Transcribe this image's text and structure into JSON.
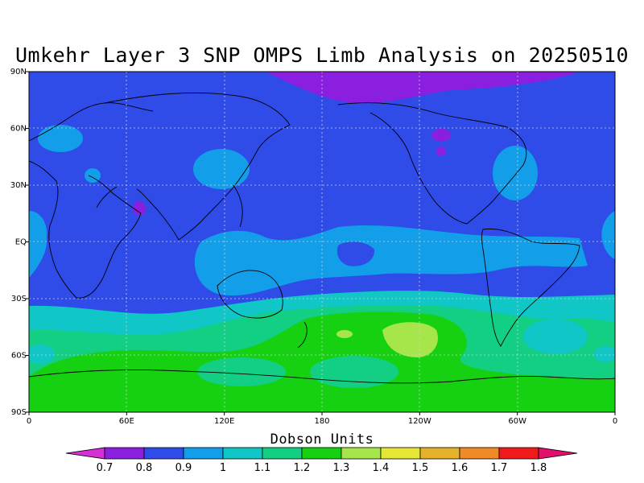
{
  "title": "Umkehr Layer 3 SNP OMPS Limb Analysis on 20250510",
  "chart_data": {
    "type": "heatmap",
    "map_projection": "cylindrical equidistant",
    "xaxis": {
      "ticks": [
        "0",
        "60E",
        "120E",
        "180",
        "120W",
        "60W",
        "0"
      ],
      "range": [
        0,
        360
      ]
    },
    "yaxis": {
      "ticks": [
        "90N",
        "60N",
        "30N",
        "EQ",
        "30S",
        "60S",
        "90S"
      ],
      "range": [
        90,
        -90
      ]
    },
    "grid": true,
    "colorbar": {
      "title": "Dobson Units",
      "labels": [
        "0.7",
        "0.8",
        "0.9",
        "1",
        "1.1",
        "1.2",
        "1.3",
        "1.4",
        "1.5",
        "1.6",
        "1.7",
        "1.8"
      ],
      "colors": [
        "#d62fd6",
        "#8a1fe0",
        "#2f4be8",
        "#129ee8",
        "#10c6c6",
        "#12cf84",
        "#16d012",
        "#a6e64a",
        "#e6e636",
        "#e6b22a",
        "#ef8a26",
        "#ef1a1a",
        "#e0106c"
      ]
    },
    "levels": {
      "background": "#2f4be8",
      "tropical_band": "#129ee8",
      "southern_midlat_1": "#10c6c6",
      "southern_midlat_2": "#12cf84",
      "southern_high": "#16d012",
      "arctic_low": "#8a1fe0",
      "south_pacific_max": "#a6e64a"
    }
  }
}
